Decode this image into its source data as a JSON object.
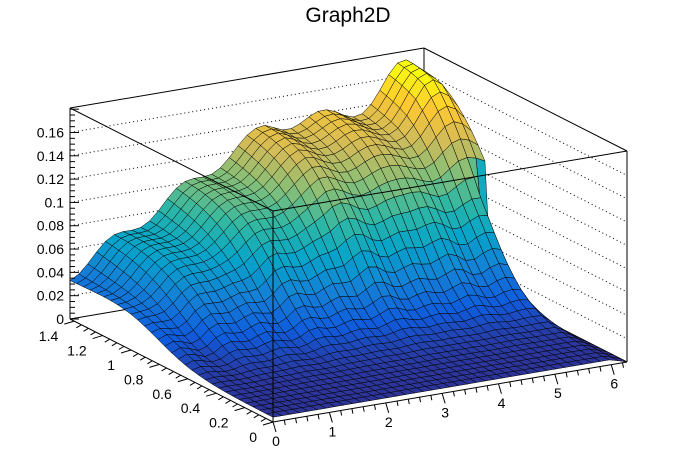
{
  "chart_data": {
    "type": "surface",
    "title": "Graph2D",
    "xlabel": "",
    "ylabel": "",
    "zlabel": "",
    "xlim": [
      0,
      6.28
    ],
    "ylim": [
      0,
      1.43
    ],
    "zlim": [
      0,
      0.181
    ],
    "x_ticks": [
      "0",
      "1",
      "2",
      "3",
      "4",
      "5",
      "6"
    ],
    "y_ticks": [
      "0",
      "0.2",
      "0.4",
      "0.6",
      "0.8",
      "1",
      "1.2",
      "1.4"
    ],
    "z_ticks": [
      "0",
      "0.02",
      "0.04",
      "0.06",
      "0.08",
      "0.1",
      "0.12",
      "0.14",
      "0.16"
    ],
    "grid": true,
    "palette": [
      "#352a87",
      "#0f5cdd",
      "#1481d6",
      "#06a4ca",
      "#2eb7a4",
      "#87bf77",
      "#d1bb59",
      "#fec832",
      "#f9fb0e"
    ],
    "surface_description_points": [
      {
        "x": 0,
        "y": 1.4,
        "z": 0.04
      },
      {
        "x": 3.5,
        "y": 1.4,
        "z": 0.14
      },
      {
        "x": 6.0,
        "y": 1.3,
        "z": 0.17
      },
      {
        "x": 6.28,
        "y": 0.8,
        "z": 0.0
      },
      {
        "x": 3.0,
        "y": 0.0,
        "z": 0.005
      }
    ]
  }
}
